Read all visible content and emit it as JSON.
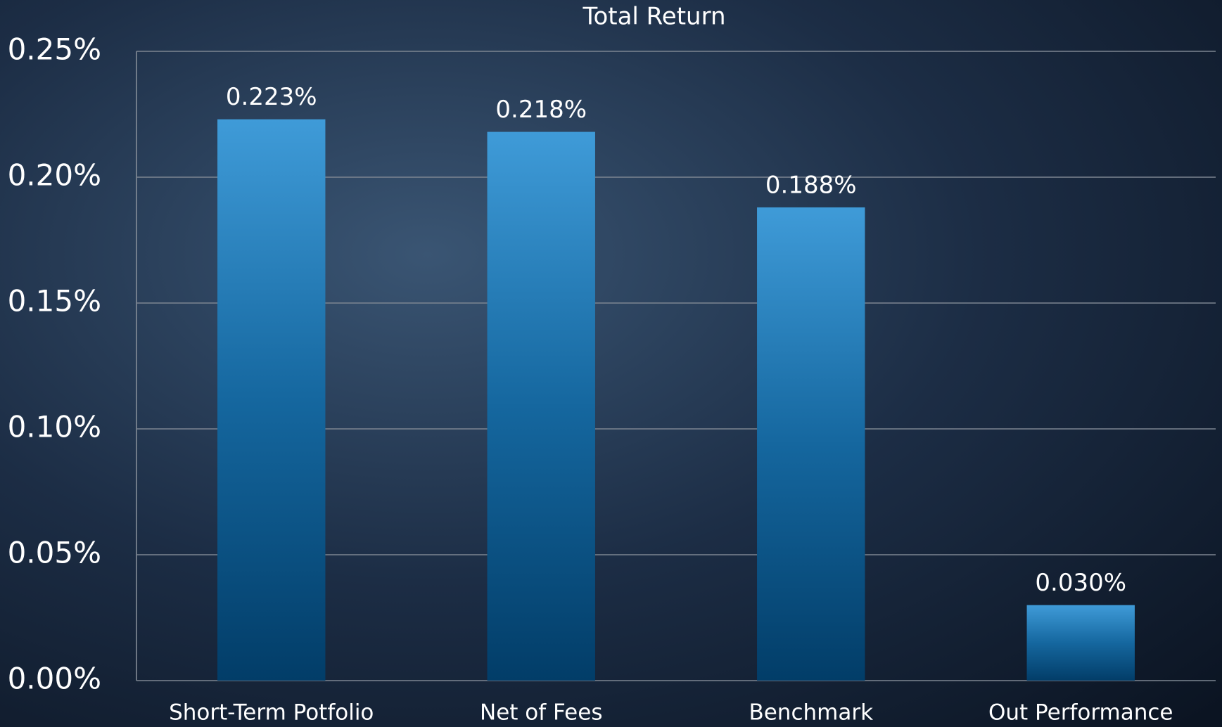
{
  "chart_data": {
    "type": "bar",
    "title": "Total Return",
    "categories": [
      "Short-Term Potfolio",
      "Net of Fees",
      "Benchmark",
      "Out Performance"
    ],
    "values": [
      0.223,
      0.218,
      0.188,
      0.03
    ],
    "value_labels": [
      "0.223%",
      "0.218%",
      "0.188%",
      "0.030%"
    ],
    "color": "#2f86c6",
    "ylim": [
      0,
      0.25
    ],
    "yticks": [
      {
        "value": 0,
        "label": "0.00%"
      },
      {
        "value": 0.05,
        "label": "0.05%"
      },
      {
        "value": 0.1,
        "label": "0.10%"
      },
      {
        "value": 0.15,
        "label": "0.15%"
      },
      {
        "value": 0.2,
        "label": "0.20%"
      },
      {
        "value": 0.25,
        "label": "0.25%"
      }
    ],
    "grid": true
  }
}
